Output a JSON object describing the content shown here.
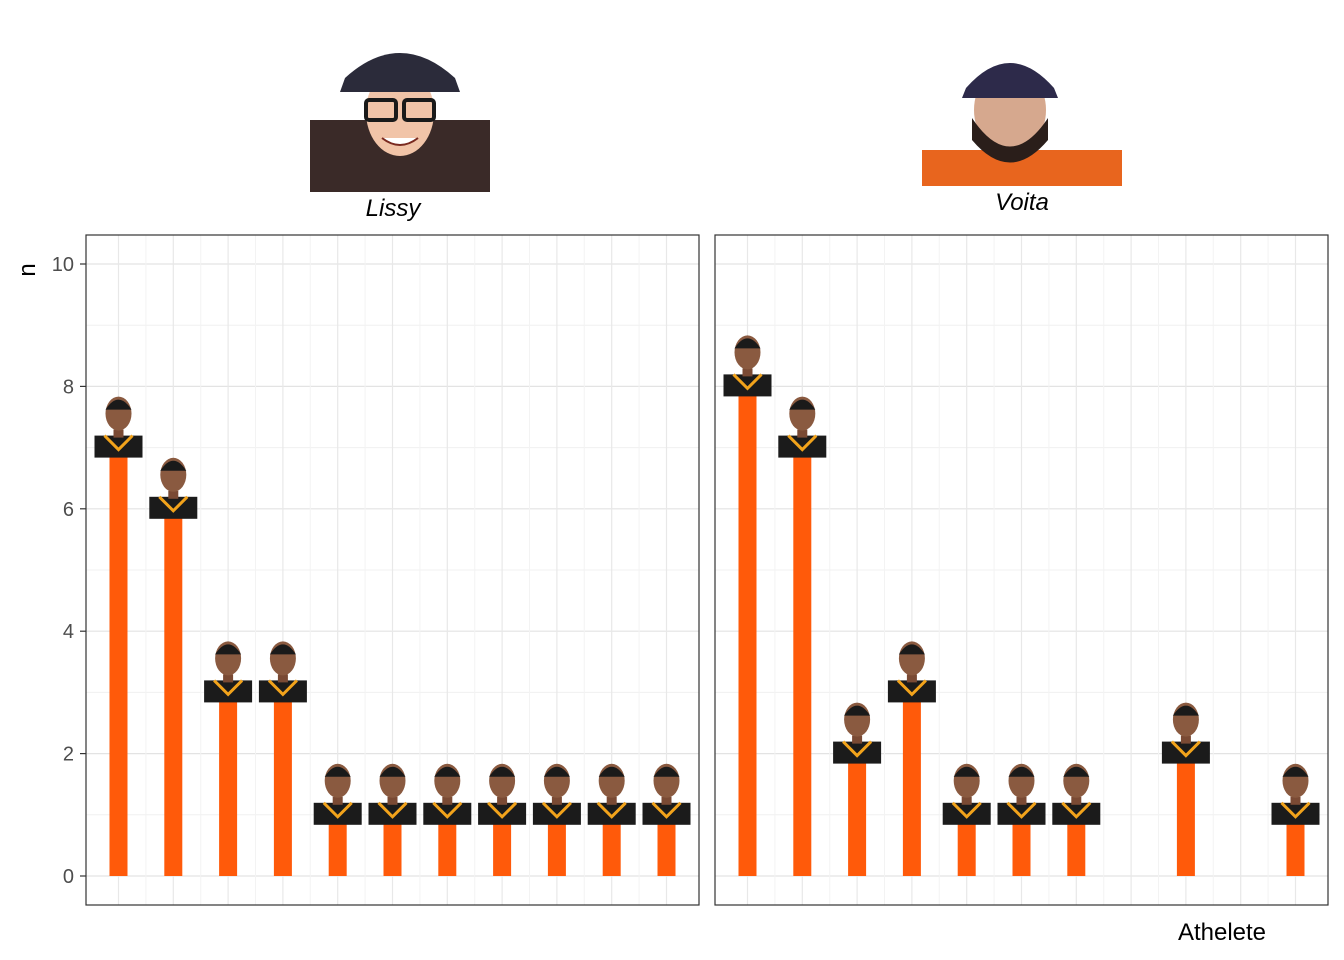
{
  "chart_data": {
    "type": "bar",
    "ylabel": "n",
    "xlabel": "Athelete",
    "ylim": [
      0,
      10.5
    ],
    "yticks": [
      0,
      2,
      4,
      6,
      8,
      10
    ],
    "grid": true,
    "bar_color": "#ff5a0a",
    "panels": [
      {
        "name": "Lissy",
        "values": [
          7,
          6,
          3,
          3,
          1,
          1,
          1,
          1,
          1,
          1,
          1
        ]
      },
      {
        "name": "Voita",
        "values": [
          8,
          7,
          2,
          3,
          1,
          1,
          1,
          0,
          2,
          0,
          1
        ]
      }
    ]
  }
}
